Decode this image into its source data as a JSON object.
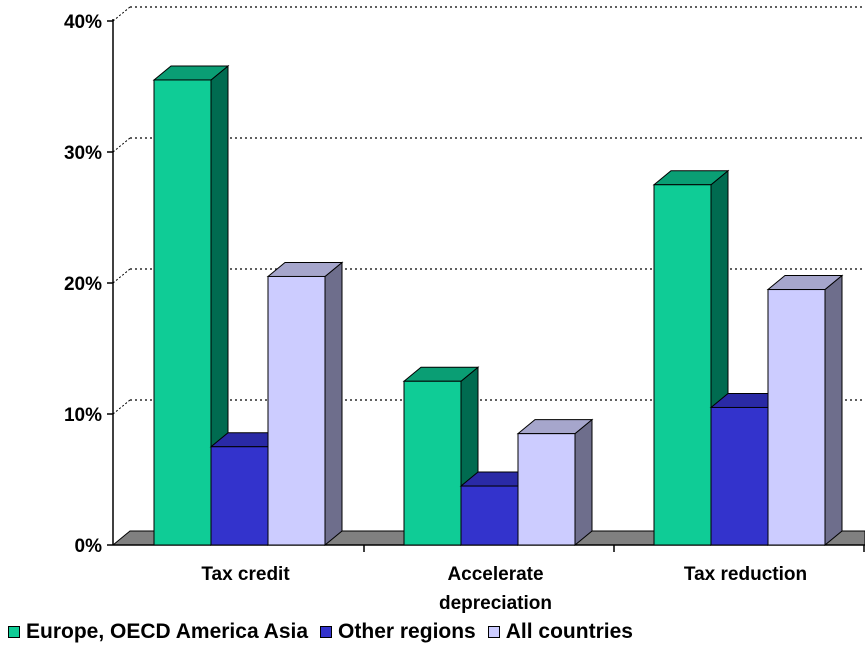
{
  "chart_data": {
    "type": "bar",
    "categories": [
      "Tax credit",
      "Accelerate\ndepreciation",
      "Tax reduction"
    ],
    "series": [
      {
        "name": "Europe, OECD America Asia",
        "values": [
          35.5,
          12.5,
          27.5
        ]
      },
      {
        "name": "Other regions",
        "values": [
          7.5,
          4.5,
          10.5
        ]
      },
      {
        "name": "All countries",
        "values": [
          20.5,
          8.5,
          19.5
        ]
      }
    ],
    "ylim": [
      0,
      40
    ],
    "yticks": [
      "0%",
      "10%",
      "20%",
      "30%",
      "40%"
    ],
    "grid": true,
    "legend_position": "bottom",
    "colors": {
      "series_front": [
        "#0fcc96",
        "#3333cc",
        "#ccccff"
      ],
      "series_side": [
        "#006b50",
        "#1a1a8c",
        "#6e6e8c"
      ],
      "series_top": [
        "#0a9e74",
        "#2a2aa6",
        "#a6a6cc"
      ],
      "floor": "#808080"
    }
  }
}
